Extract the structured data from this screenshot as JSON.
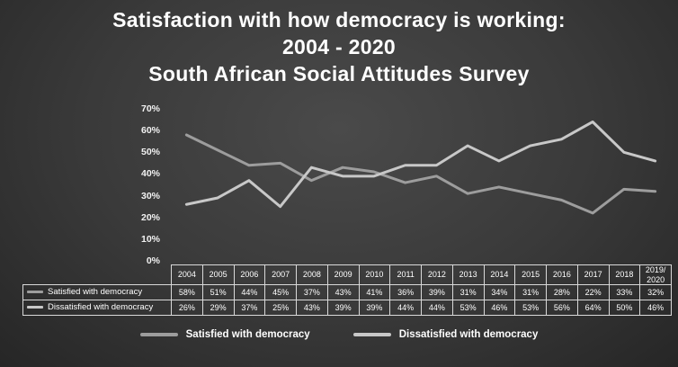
{
  "title_lines": [
    "Satisfaction with how democracy is working:",
    "2004 - 2020",
    "South African Social Attitudes Survey"
  ],
  "chart_data": {
    "type": "line",
    "title": "Satisfaction with how democracy is working: 2004 - 2020 - South African Social Attitudes Survey",
    "categories": [
      "2004",
      "2005",
      "2006",
      "2007",
      "2008",
      "2009",
      "2010",
      "2011",
      "2012",
      "2013",
      "2014",
      "2015",
      "2016",
      "2017",
      "2018",
      "2019/\n2020"
    ],
    "series": [
      {
        "name": "Satisfied with democracy",
        "color": "#9d9d9d",
        "values": [
          58,
          51,
          44,
          45,
          37,
          43,
          41,
          36,
          39,
          31,
          34,
          31,
          28,
          22,
          33,
          32
        ]
      },
      {
        "name": "Dissatisfied with democracy",
        "color": "#c8c8c8",
        "values": [
          26,
          29,
          37,
          25,
          43,
          39,
          39,
          44,
          44,
          53,
          46,
          53,
          56,
          64,
          50,
          46
        ]
      }
    ],
    "value_suffix": "%",
    "xlabel": "",
    "ylabel": "",
    "ylim": [
      0,
      70
    ],
    "ytick_labels": [
      "0%",
      "10%",
      "20%",
      "30%",
      "40%",
      "50%",
      "60%",
      "70%"
    ],
    "grid": false,
    "legend_position": "bottom",
    "data_table_shown": true
  },
  "colors": {
    "background": "#3a3a3a",
    "text": "#ffffff",
    "table_border": "#d9d9d9"
  }
}
